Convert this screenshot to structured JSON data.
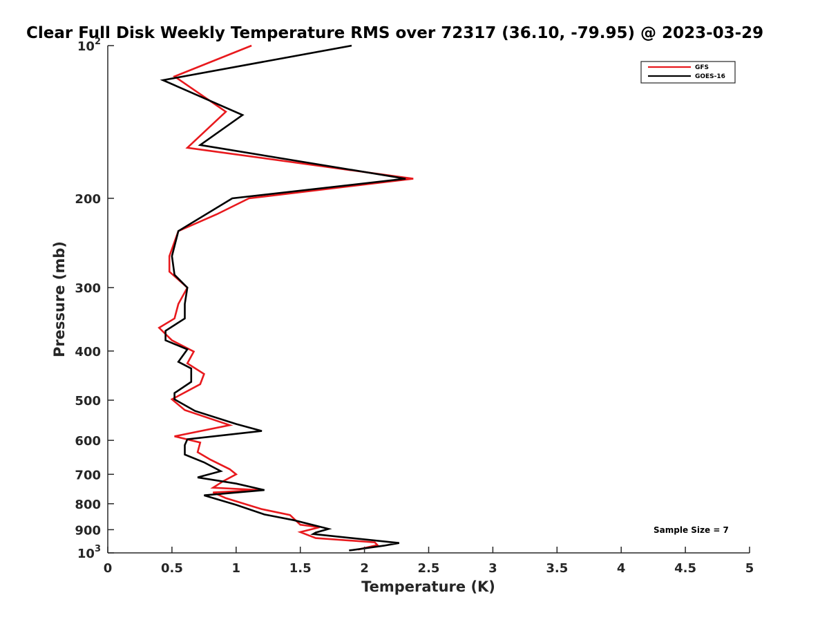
{
  "chart_data": {
    "type": "line",
    "title": "Clear Full Disk Weekly Temperature RMS over 72317 (36.10, -79.95) @ 2023-03-29",
    "xlabel": "Temperature (K)",
    "ylabel": "Pressure (mb)",
    "xlim": [
      0,
      5
    ],
    "ylim": [
      100,
      1000
    ],
    "y_scale": "log",
    "y_reversed": true,
    "grid": false,
    "legend_position": "top-right",
    "x_ticks": [
      {
        "value": 0,
        "label": "0"
      },
      {
        "value": 0.5,
        "label": "0.5"
      },
      {
        "value": 1,
        "label": "1"
      },
      {
        "value": 1.5,
        "label": "1.5"
      },
      {
        "value": 2,
        "label": "2"
      },
      {
        "value": 2.5,
        "label": "2.5"
      },
      {
        "value": 3,
        "label": "3"
      },
      {
        "value": 3.5,
        "label": "3.5"
      },
      {
        "value": 4,
        "label": "4"
      },
      {
        "value": 4.5,
        "label": "4.5"
      },
      {
        "value": 5,
        "label": "5"
      }
    ],
    "y_ticks": [
      {
        "value": 100,
        "base": "10",
        "exp": "2"
      },
      {
        "value": 200,
        "label": "200"
      },
      {
        "value": 300,
        "label": "300"
      },
      {
        "value": 400,
        "label": "400"
      },
      {
        "value": 500,
        "label": "500"
      },
      {
        "value": 600,
        "label": "600"
      },
      {
        "value": 700,
        "label": "700"
      },
      {
        "value": 800,
        "label": "800"
      },
      {
        "value": 900,
        "label": "900"
      },
      {
        "value": 1000,
        "base": "10",
        "exp": "3"
      }
    ],
    "series": [
      {
        "name": "GFS",
        "color": "#e8191d",
        "points": [
          [
            1.12,
            100
          ],
          [
            0.52,
            115
          ],
          [
            0.92,
            135
          ],
          [
            0.62,
            159
          ],
          [
            2.38,
            183
          ],
          [
            1.1,
            200
          ],
          [
            0.85,
            215
          ],
          [
            0.55,
            232
          ],
          [
            0.48,
            260
          ],
          [
            0.48,
            279
          ],
          [
            0.62,
            300
          ],
          [
            0.55,
            323
          ],
          [
            0.52,
            345
          ],
          [
            0.4,
            360
          ],
          [
            0.5,
            381
          ],
          [
            0.67,
            401
          ],
          [
            0.62,
            423
          ],
          [
            0.75,
            444
          ],
          [
            0.72,
            465
          ],
          [
            0.5,
            498
          ],
          [
            0.6,
            523
          ],
          [
            0.95,
            560
          ],
          [
            0.52,
            589
          ],
          [
            0.72,
            606
          ],
          [
            0.7,
            633
          ],
          [
            0.8,
            655
          ],
          [
            0.95,
            684
          ],
          [
            1.0,
            700
          ],
          [
            0.9,
            722
          ],
          [
            0.82,
            744
          ],
          [
            1.18,
            752
          ],
          [
            0.82,
            760
          ],
          [
            0.92,
            780
          ],
          [
            1.2,
            820
          ],
          [
            1.42,
            842
          ],
          [
            1.5,
            880
          ],
          [
            1.65,
            890
          ],
          [
            1.5,
            910
          ],
          [
            1.62,
            935
          ],
          [
            2.08,
            953
          ],
          [
            2.1,
            965
          ],
          [
            1.95,
            985
          ]
        ]
      },
      {
        "name": "GOES-16",
        "color": "#000000",
        "points": [
          [
            1.9,
            100
          ],
          [
            0.43,
            117
          ],
          [
            1.05,
            137
          ],
          [
            0.72,
            157
          ],
          [
            2.32,
            183
          ],
          [
            0.97,
            200
          ],
          [
            0.55,
            232
          ],
          [
            0.5,
            260
          ],
          [
            0.52,
            283
          ],
          [
            0.62,
            300
          ],
          [
            0.6,
            323
          ],
          [
            0.6,
            345
          ],
          [
            0.45,
            365
          ],
          [
            0.45,
            381
          ],
          [
            0.62,
            397
          ],
          [
            0.55,
            420
          ],
          [
            0.65,
            433
          ],
          [
            0.65,
            460
          ],
          [
            0.52,
            484
          ],
          [
            0.52,
            498
          ],
          [
            0.68,
            525
          ],
          [
            1.0,
            557
          ],
          [
            1.2,
            575
          ],
          [
            0.62,
            597
          ],
          [
            0.6,
            613
          ],
          [
            0.6,
            623
          ],
          [
            0.6,
            640
          ],
          [
            0.75,
            663
          ],
          [
            0.88,
            690
          ],
          [
            0.7,
            710
          ],
          [
            1.0,
            730
          ],
          [
            1.22,
            752
          ],
          [
            0.75,
            770
          ],
          [
            1.0,
            804
          ],
          [
            1.22,
            840
          ],
          [
            1.45,
            862
          ],
          [
            1.72,
            897
          ],
          [
            1.62,
            912
          ],
          [
            1.6,
            918
          ],
          [
            2.27,
            956
          ],
          [
            2.15,
            968
          ],
          [
            1.88,
            989
          ]
        ]
      }
    ],
    "annotation": "Sample Size = 7"
  }
}
